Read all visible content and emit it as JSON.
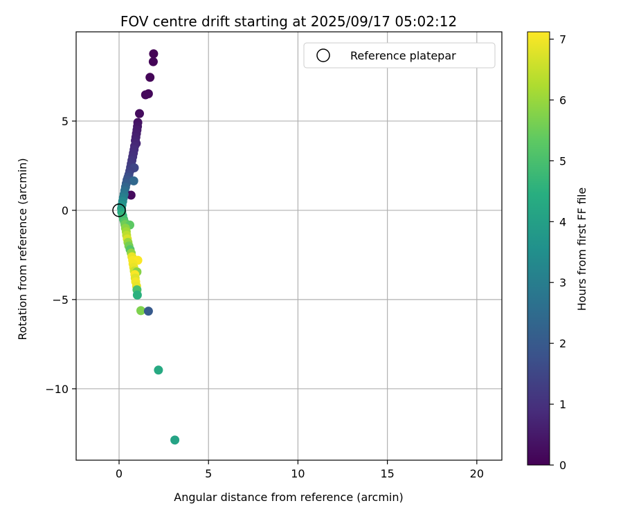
{
  "chart_data": {
    "type": "scatter",
    "title": "FOV centre drift starting at 2025/09/17 05:02:12",
    "xlabel": "Angular distance from reference (arcmin)",
    "ylabel": "Rotation from reference (arcmin)",
    "xlim": [
      -2.4,
      21.4
    ],
    "ylim": [
      -14.0,
      10.0
    ],
    "xticks": [
      0,
      5,
      10,
      15,
      20
    ],
    "yticks": [
      -10,
      -5,
      0,
      5
    ],
    "grid": true,
    "legend": {
      "position": "top-right",
      "entries": [
        "Reference platepar"
      ]
    },
    "reference_point": {
      "x": 0,
      "y": 0
    },
    "colorbar": {
      "label": "Hours from first FF file",
      "colormap": "viridis",
      "range": [
        0,
        7.12
      ],
      "ticks": [
        0,
        1,
        2,
        3,
        4,
        5,
        6,
        7
      ]
    },
    "points": [
      {
        "x": 1.93,
        "y": 8.77,
        "c": 0.03
      },
      {
        "x": 1.91,
        "y": 8.33,
        "c": 0.06
      },
      {
        "x": 1.73,
        "y": 7.45,
        "c": 0.1
      },
      {
        "x": 1.64,
        "y": 6.53,
        "c": 0.14
      },
      {
        "x": 1.48,
        "y": 6.47,
        "c": 0.17
      },
      {
        "x": 1.14,
        "y": 5.42,
        "c": 0.22
      },
      {
        "x": 1.05,
        "y": 4.92,
        "c": 0.35
      },
      {
        "x": 1.03,
        "y": 4.7,
        "c": 0.42
      },
      {
        "x": 1.0,
        "y": 4.5,
        "c": 0.5
      },
      {
        "x": 0.97,
        "y": 4.3,
        "c": 0.56
      },
      {
        "x": 0.94,
        "y": 4.1,
        "c": 0.62
      },
      {
        "x": 0.91,
        "y": 3.9,
        "c": 0.68
      },
      {
        "x": 0.96,
        "y": 3.75,
        "c": 0.74
      },
      {
        "x": 0.87,
        "y": 3.6,
        "c": 0.8
      },
      {
        "x": 0.84,
        "y": 3.4,
        "c": 0.88
      },
      {
        "x": 0.8,
        "y": 3.2,
        "c": 0.95
      },
      {
        "x": 0.76,
        "y": 3.0,
        "c": 1.02
      },
      {
        "x": 0.72,
        "y": 2.8,
        "c": 1.1
      },
      {
        "x": 0.68,
        "y": 2.6,
        "c": 1.2
      },
      {
        "x": 0.64,
        "y": 2.4,
        "c": 1.3
      },
      {
        "x": 0.85,
        "y": 2.38,
        "c": 1.5
      },
      {
        "x": 0.6,
        "y": 2.2,
        "c": 1.4
      },
      {
        "x": 0.55,
        "y": 2.0,
        "c": 1.55
      },
      {
        "x": 0.5,
        "y": 1.85,
        "c": 1.7
      },
      {
        "x": 0.45,
        "y": 1.7,
        "c": 1.85
      },
      {
        "x": 0.82,
        "y": 1.65,
        "c": 2.4
      },
      {
        "x": 0.4,
        "y": 1.5,
        "c": 2.05
      },
      {
        "x": 0.36,
        "y": 1.3,
        "c": 2.3
      },
      {
        "x": 0.32,
        "y": 1.1,
        "c": 2.55
      },
      {
        "x": 0.67,
        "y": 0.85,
        "c": 0.2
      },
      {
        "x": 0.28,
        "y": 0.9,
        "c": 2.8
      },
      {
        "x": 0.24,
        "y": 0.7,
        "c": 3.05
      },
      {
        "x": 0.2,
        "y": 0.5,
        "c": 3.35
      },
      {
        "x": 0.16,
        "y": 0.3,
        "c": 3.65
      },
      {
        "x": 0.14,
        "y": 0.1,
        "c": 3.95
      },
      {
        "x": 0.15,
        "y": -0.1,
        "c": 4.3
      },
      {
        "x": 0.2,
        "y": -0.3,
        "c": 4.6
      },
      {
        "x": 0.25,
        "y": -0.5,
        "c": 4.9
      },
      {
        "x": 0.3,
        "y": -0.65,
        "c": 5.2
      },
      {
        "x": 0.33,
        "y": -0.8,
        "c": 5.55
      },
      {
        "x": 0.6,
        "y": -0.82,
        "c": 5.3
      },
      {
        "x": 0.36,
        "y": -1.0,
        "c": 5.85
      },
      {
        "x": 0.4,
        "y": -1.2,
        "c": 6.1
      },
      {
        "x": 0.42,
        "y": -1.4,
        "c": 6.4
      },
      {
        "x": 0.46,
        "y": -1.6,
        "c": 6.7
      },
      {
        "x": 0.5,
        "y": -1.8,
        "c": 6.0
      },
      {
        "x": 0.55,
        "y": -2.0,
        "c": 5.6
      },
      {
        "x": 0.62,
        "y": -2.2,
        "c": 5.2
      },
      {
        "x": 0.68,
        "y": -2.4,
        "c": 5.9
      },
      {
        "x": 0.72,
        "y": -2.6,
        "c": 6.9
      },
      {
        "x": 0.76,
        "y": -2.8,
        "c": 7.05
      },
      {
        "x": 1.05,
        "y": -2.8,
        "c": 7.1
      },
      {
        "x": 0.78,
        "y": -3.0,
        "c": 7.0
      },
      {
        "x": 0.82,
        "y": -3.2,
        "c": 6.9
      },
      {
        "x": 0.85,
        "y": -3.4,
        "c": 6.6
      },
      {
        "x": 1.0,
        "y": -3.45,
        "c": 5.8
      },
      {
        "x": 0.88,
        "y": -3.6,
        "c": 7.08
      },
      {
        "x": 0.9,
        "y": -3.8,
        "c": 6.8
      },
      {
        "x": 0.93,
        "y": -4.0,
        "c": 7.0
      },
      {
        "x": 0.98,
        "y": -4.25,
        "c": 6.9
      },
      {
        "x": 1.0,
        "y": -4.45,
        "c": 5.0
      },
      {
        "x": 1.02,
        "y": -4.75,
        "c": 4.5
      },
      {
        "x": 1.22,
        "y": -5.62,
        "c": 5.7
      },
      {
        "x": 1.64,
        "y": -5.65,
        "c": 2.0
      },
      {
        "x": 2.2,
        "y": -8.95,
        "c": 4.3
      },
      {
        "x": 3.12,
        "y": -12.87,
        "c": 4.1
      }
    ]
  }
}
